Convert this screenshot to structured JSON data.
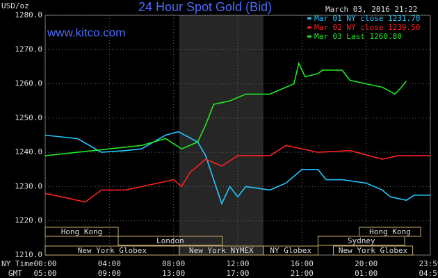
{
  "chart_data": {
    "type": "line",
    "title": "24 Hour Spot Gold (Bid)",
    "subtitle": "www.kitco.com",
    "date_label": "March 03, 2016 21:22",
    "y_label": "USD/oz",
    "x_label": "NY Time",
    "x2_label": "GMT",
    "xlim": [
      0,
      24
    ],
    "xticks": [
      {
        "value": 0,
        "label": "00:00"
      },
      {
        "value": 4,
        "label": "04:00"
      },
      {
        "value": 8,
        "label": "08:00"
      },
      {
        "value": 12,
        "label": "12:00"
      },
      {
        "value": 16,
        "label": "16:00"
      },
      {
        "value": 20,
        "label": "20:00"
      },
      {
        "value": 24,
        "label": "23:59"
      }
    ],
    "x2ticks": [
      {
        "value": 0,
        "label": "05:00"
      },
      {
        "value": 4,
        "label": "09:00"
      },
      {
        "value": 8,
        "label": "13:00"
      },
      {
        "value": 12,
        "label": "17:00"
      },
      {
        "value": 16,
        "label": "21:00"
      },
      {
        "value": 20,
        "label": "01:00"
      },
      {
        "value": 24,
        "label": "04:59"
      }
    ],
    "ylim": [
      1210,
      1280
    ],
    "yticks": [
      {
        "value": 1210,
        "label": "1210.0"
      },
      {
        "value": 1220,
        "label": "1220.0"
      },
      {
        "value": 1230,
        "label": "1230.0"
      },
      {
        "value": 1240,
        "label": "1240.0"
      },
      {
        "value": 1250,
        "label": "1250.0"
      },
      {
        "value": 1260,
        "label": "1260.0"
      },
      {
        "value": 1270,
        "label": "1270.0"
      },
      {
        "value": 1280,
        "label": "1280.0"
      }
    ],
    "grid": true,
    "sessions": [
      {
        "name": "Hong Kong",
        "start": 0,
        "end": 4.55,
        "row": 1
      },
      {
        "name": "Hong Kong",
        "start": 19.57,
        "end": 23.4,
        "row": 1
      },
      {
        "name": "London",
        "start": 4.55,
        "end": 11.04,
        "row": 2
      },
      {
        "name": "Sydney",
        "start": 17.0,
        "end": 22.4,
        "row": 2
      },
      {
        "name": "New York Globex",
        "start": 0,
        "end": 8.35,
        "row": 3
      },
      {
        "name": "New York NYMEX",
        "start": 8.35,
        "end": 13.6,
        "row": 3
      },
      {
        "name": "NY Globex",
        "start": 13.6,
        "end": 17.0,
        "row": 3
      },
      {
        "name": "New York Globex",
        "start": 17.96,
        "end": 22.9,
        "row": 3
      }
    ],
    "series": [
      {
        "name": "Mar 01 NY close 1231.70",
        "color": "#22c8ff",
        "x": [
          0,
          1,
          2,
          3.5,
          5,
          6,
          7.5,
          8.3,
          9.5,
          10,
          10.5,
          11,
          11.5,
          12,
          12.5,
          14,
          15,
          16,
          17,
          17.5,
          18.5,
          20,
          21,
          21.5,
          22.5,
          23,
          24
        ],
        "values": [
          1245,
          1244.5,
          1244,
          1240,
          1240.5,
          1241,
          1245,
          1246,
          1243,
          1239,
          1232,
          1225,
          1230,
          1227,
          1230,
          1229,
          1231,
          1235,
          1235,
          1232,
          1232,
          1231,
          1229,
          1227,
          1226,
          1227.5,
          1227.5
        ]
      },
      {
        "name": "Mar 02 NY close 1239.50",
        "color": "#ff2020",
        "x": [
          0,
          1,
          2.5,
          3.5,
          5,
          6.5,
          8,
          8.5,
          9,
          9.5,
          10,
          11,
          12,
          14,
          15,
          17,
          19,
          21,
          22,
          24
        ],
        "values": [
          1228,
          1227,
          1225.5,
          1229,
          1229,
          1230.5,
          1232,
          1230,
          1234,
          1236,
          1238,
          1236,
          1239,
          1239,
          1242,
          1240,
          1240.5,
          1238,
          1239,
          1239
        ]
      },
      {
        "name": "Mar 03 Last 1260.80",
        "color": "#22e822",
        "x": [
          0,
          2,
          4,
          6,
          7.5,
          8.5,
          9.5,
          10,
          10.5,
          11.5,
          12.5,
          14,
          15,
          15.5,
          15.8,
          16.2,
          17,
          17.3,
          18.5,
          19,
          20,
          21,
          21.8,
          22.2,
          22.5
        ],
        "values": [
          1239,
          1240,
          1241,
          1242,
          1244,
          1241,
          1243,
          1248,
          1254,
          1255,
          1257,
          1257,
          1259,
          1260,
          1266,
          1262,
          1263,
          1264,
          1264,
          1261,
          1260,
          1259,
          1257,
          1259,
          1260.8
        ]
      }
    ]
  }
}
